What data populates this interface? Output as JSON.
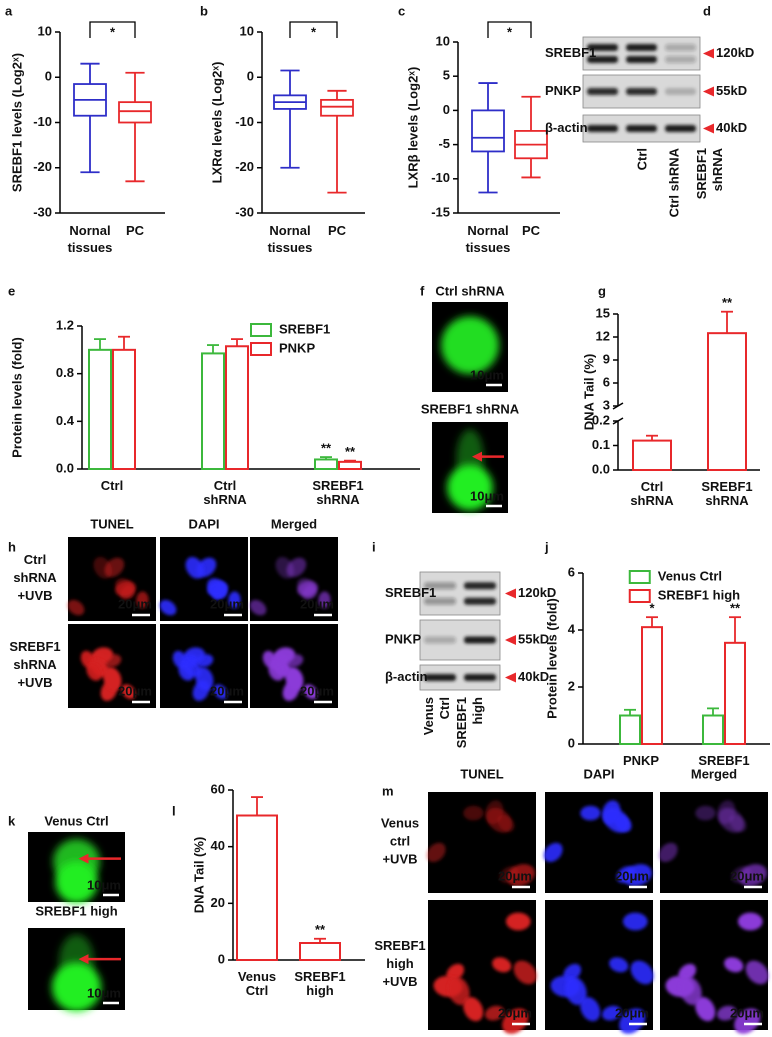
{
  "chart_data": [
    {
      "label": "a",
      "type": "box",
      "ylabel": "SREBF1 levels (Log2ˣ)",
      "categories": [
        "Nornal tissues",
        "PC"
      ],
      "boxes": [
        {
          "min": -21,
          "q1": -8.5,
          "median": -5,
          "q3": -1.5,
          "max": 3,
          "color": "#2e2ec8"
        },
        {
          "min": -23,
          "q1": -10,
          "median": -7.5,
          "q3": -5.5,
          "max": 1,
          "color": "#e8282b"
        }
      ],
      "ylim": [
        -30,
        10
      ],
      "yticks": [
        -30,
        -20,
        -10,
        0,
        10
      ],
      "significance": "*"
    },
    {
      "label": "b",
      "type": "box",
      "ylabel": "LXRα levels (Log2ˣ)",
      "categories": [
        "Nornal tissues",
        "PC"
      ],
      "boxes": [
        {
          "min": -20,
          "q1": -7,
          "median": -5.5,
          "q3": -4,
          "max": 1.5,
          "color": "#2e2ec8"
        },
        {
          "min": -25.5,
          "q1": -8.5,
          "median": -6.5,
          "q3": -5,
          "max": -3,
          "color": "#e8282b"
        }
      ],
      "ylim": [
        -30,
        10
      ],
      "yticks": [
        -30,
        -20,
        -10,
        0,
        10
      ],
      "significance": "*"
    },
    {
      "label": "c",
      "type": "box",
      "ylabel": "LXRβ levels (Log2ˣ)",
      "categories": [
        "Nornal tissues",
        "PC"
      ],
      "boxes": [
        {
          "min": -12,
          "q1": -6,
          "median": -4,
          "q3": 0,
          "max": 4,
          "color": "#2e2ec8"
        },
        {
          "min": -9.8,
          "q1": -7,
          "median": -5,
          "q3": -3,
          "max": 2,
          "color": "#e8282b"
        }
      ],
      "ylim": [
        -15,
        10
      ],
      "yticks": [
        -15,
        -10,
        -5,
        0,
        5,
        10
      ],
      "significance": "*"
    },
    {
      "label": "e",
      "type": "bar",
      "ylabel": "Protein levels (fold)",
      "categories": [
        "Ctrl",
        "Ctrl shRNA",
        "SREBF1 shRNA"
      ],
      "series": [
        {
          "name": "SREBF1",
          "color": "#3cb83c",
          "values": [
            1,
            0.97,
            0.08
          ],
          "errors": [
            0.09,
            0.07,
            0.02
          ],
          "annotations": [
            null,
            null,
            "**"
          ]
        },
        {
          "name": "PNKP",
          "color": "#e8282b",
          "values": [
            1,
            1.03,
            0.06
          ],
          "errors": [
            0.11,
            0.06,
            0.01
          ],
          "annotations": [
            null,
            null,
            "**"
          ]
        }
      ],
      "ylim": [
        0,
        1.2
      ],
      "yticks": [
        {
          "value": 0,
          "label": "0.0"
        },
        0.4,
        0.8,
        1.2
      ],
      "legend": "top-right"
    },
    {
      "label": "g",
      "type": "bar",
      "ylabel": "DNA Tail (%)",
      "categories": [
        "Ctrl shRNA",
        "SREBF1 shRNA"
      ],
      "values": [
        0.12,
        12.5
      ],
      "errors": [
        0.02,
        2.8
      ],
      "annotations": [
        null,
        "**"
      ],
      "color": "#e8282b",
      "ylim": [
        0,
        15
      ],
      "axis_break": [
        0.2,
        3
      ],
      "yticks": [
        {
          "value": 0,
          "label": "0.0"
        },
        0.1,
        0.2,
        3,
        6,
        9,
        12,
        15
      ]
    },
    {
      "label": "j",
      "type": "bar",
      "ylabel": "Protein levels (fold)",
      "categories": [
        "PNKP",
        "SREBF1"
      ],
      "series": [
        {
          "name": "Venus Ctrl",
          "color": "#3cb83c",
          "values": [
            1,
            1
          ],
          "errors": [
            0.2,
            0.25
          ],
          "annotations": [
            null,
            null
          ]
        },
        {
          "name": "SREBF1 high",
          "color": "#e8282b",
          "values": [
            4.1,
            3.55
          ],
          "errors": [
            0.35,
            0.9
          ],
          "annotations": [
            "*",
            "**"
          ]
        }
      ],
      "ylim": [
        0,
        6
      ],
      "yticks": [
        0,
        2,
        4,
        6
      ],
      "legend": "top-left"
    },
    {
      "label": "l",
      "type": "bar",
      "ylabel": "DNA Tail (%)",
      "categories": [
        "Venus Ctrl",
        "SREBF1 high"
      ],
      "values": [
        51,
        6
      ],
      "errors": [
        6.5,
        1.5
      ],
      "annotations": [
        null,
        "**"
      ],
      "color": "#e8282b",
      "ylim": [
        0,
        60
      ],
      "yticks": [
        0,
        20,
        40,
        60
      ]
    }
  ],
  "blots": [
    {
      "label": "d",
      "rows": [
        {
          "name": "SREBF1",
          "size": "120kD"
        },
        {
          "name": "PNKP",
          "size": "55kD"
        },
        {
          "name": "β-actin",
          "size": "40kD"
        }
      ],
      "lanes": [
        "Ctrl",
        "Ctrl shRNA",
        "SREBF1 shRNA"
      ]
    },
    {
      "label": "i",
      "rows": [
        {
          "name": "SREBF1",
          "size": "120kD"
        },
        {
          "name": "PNKP",
          "size": "55kD"
        },
        {
          "name": "β-actin",
          "size": "40kD"
        }
      ],
      "lanes": [
        "Venus Ctrl",
        "SREBF1 high"
      ]
    }
  ],
  "comets": [
    {
      "label": "f",
      "images": [
        {
          "title": "Ctrl shRNA",
          "scale": "10μm"
        },
        {
          "title": "SREBF1 shRNA",
          "scale": "10μm"
        }
      ]
    },
    {
      "label": "k",
      "images": [
        {
          "title": "Venus Ctrl",
          "scale": "10μm"
        },
        {
          "title": "SREBF1 high",
          "scale": "10μm"
        }
      ]
    }
  ],
  "micrographs": [
    {
      "label": "h",
      "columns": [
        "TUNEL",
        "DAPI",
        "Merged"
      ],
      "rows": [
        "Ctrl shRNA +UVB",
        "SREBF1 shRNA +UVB"
      ],
      "scale": "20μm"
    },
    {
      "label": "m",
      "columns": [
        "TUNEL",
        "DAPI",
        "Merged"
      ],
      "rows": [
        "Venus ctrl +UVB",
        "SREBF1 high +UVB"
      ],
      "scale": "20μm"
    }
  ]
}
